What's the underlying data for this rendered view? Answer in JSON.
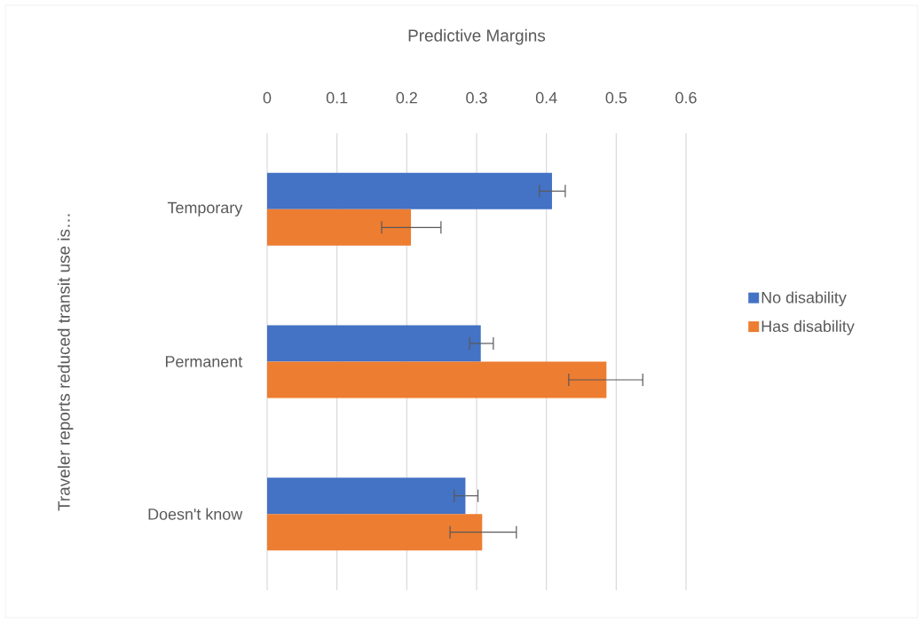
{
  "chart_data": {
    "type": "bar",
    "orientation": "horizontal",
    "xlabel": "Predictive Margins",
    "ylabel": "Traveler reports reduced transit use is…",
    "categories": [
      "Temporary",
      "Permanent",
      "Doesn't know"
    ],
    "series": [
      {
        "name": "No disability",
        "color": "#4472c4",
        "values": [
          0.408,
          0.306,
          0.284
        ],
        "errors": [
          [
            0.39,
            0.427
          ],
          [
            0.29,
            0.324
          ],
          [
            0.268,
            0.302
          ]
        ]
      },
      {
        "name": "Has disability",
        "color": "#ed7d31",
        "values": [
          0.206,
          0.486,
          0.308
        ],
        "errors": [
          [
            0.164,
            0.249
          ],
          [
            0.432,
            0.538
          ],
          [
            0.262,
            0.357
          ]
        ]
      }
    ],
    "xlim": [
      0,
      0.6
    ],
    "xticks": [
      0,
      0.1,
      0.2,
      0.3,
      0.4,
      0.5,
      0.6
    ],
    "grid": "x",
    "legend": "right"
  }
}
